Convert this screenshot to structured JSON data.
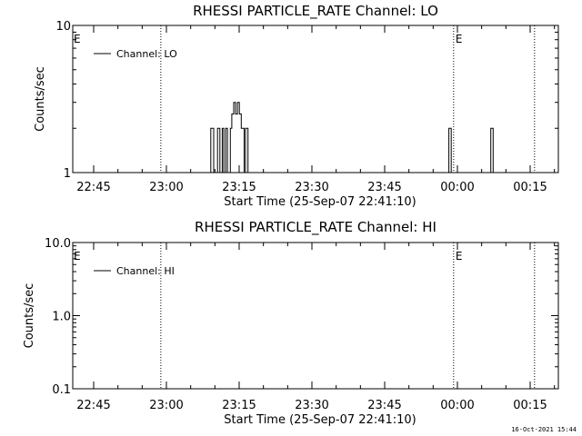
{
  "chart_data": [
    {
      "type": "line",
      "title": "RHESSI PARTICLE_RATE Channel: LO",
      "xlabel": "Start Time (25-Sep-07 22:41:10)",
      "ylabel": "Counts/sec",
      "x_tick_labels": [
        "22:45",
        "23:00",
        "23:15",
        "23:30",
        "23:45",
        "00:00",
        "00:15"
      ],
      "y_scale": "log",
      "ylim": [
        1,
        10
      ],
      "y_tick_labels": [
        "1",
        "10"
      ],
      "legend_label": "Channel: LO",
      "legend_position": "top-left",
      "x_unit": "minutes since 22:41:10",
      "xlim": [
        0,
        102
      ],
      "event_lines": [
        {
          "x": 18.5,
          "label": ""
        },
        {
          "x": 80.0,
          "label": "E"
        },
        {
          "x": 97.0,
          "label": ""
        }
      ],
      "event_label_left": "E",
      "series": [
        {
          "name": "Channel: LO",
          "x": [
            29.0,
            29.0,
            29.6,
            29.6,
            30.4,
            30.4,
            30.9,
            30.9,
            31.4,
            31.4,
            31.7,
            31.7,
            32.1,
            32.1,
            32.5,
            32.5,
            33.1,
            33.1,
            33.4,
            33.4,
            33.8,
            33.8,
            34.2,
            34.2,
            34.6,
            34.6,
            35.0,
            35.0,
            35.4,
            35.4,
            36.0,
            36.0,
            36.3,
            36.3,
            36.8,
            36.8,
            37.2,
            37.2,
            79.0,
            79.0,
            79.5,
            79.5,
            79.9,
            79.9,
            87.8,
            87.8,
            88.3,
            88.3,
            88.7,
            88.7
          ],
          "y": [
            1,
            2,
            2,
            1,
            1,
            2,
            2,
            1,
            1,
            2,
            2,
            1,
            1,
            2,
            2,
            1,
            1,
            2,
            2,
            2.5,
            2.5,
            3,
            3,
            2.5,
            2.5,
            3,
            3,
            2.5,
            2.5,
            2,
            2,
            1,
            1,
            2,
            2,
            1,
            1,
            1,
            1,
            2,
            2,
            1,
            1,
            1,
            1,
            2,
            2,
            1,
            1,
            1
          ]
        }
      ]
    },
    {
      "type": "line",
      "title": "RHESSI PARTICLE_RATE Channel: HI",
      "xlabel": "Start Time (25-Sep-07 22:41:10)",
      "ylabel": "Counts/sec",
      "x_tick_labels": [
        "22:45",
        "23:00",
        "23:15",
        "23:30",
        "23:45",
        "00:00",
        "00:15"
      ],
      "y_scale": "log",
      "ylim": [
        0.1,
        10
      ],
      "y_tick_labels": [
        "0.1",
        "1.0",
        "10.0"
      ],
      "legend_label": "Channel: HI",
      "legend_position": "top-left",
      "x_unit": "minutes since 22:41:10",
      "xlim": [
        0,
        102
      ],
      "event_lines": [
        {
          "x": 18.5,
          "label": ""
        },
        {
          "x": 80.0,
          "label": "E"
        },
        {
          "x": 97.0,
          "label": ""
        }
      ],
      "event_label_left": "E",
      "series": [
        {
          "name": "Channel: HI",
          "x": [],
          "y": []
        }
      ]
    }
  ],
  "footer": {
    "timestamp": "16-Oct-2021 15:44"
  }
}
